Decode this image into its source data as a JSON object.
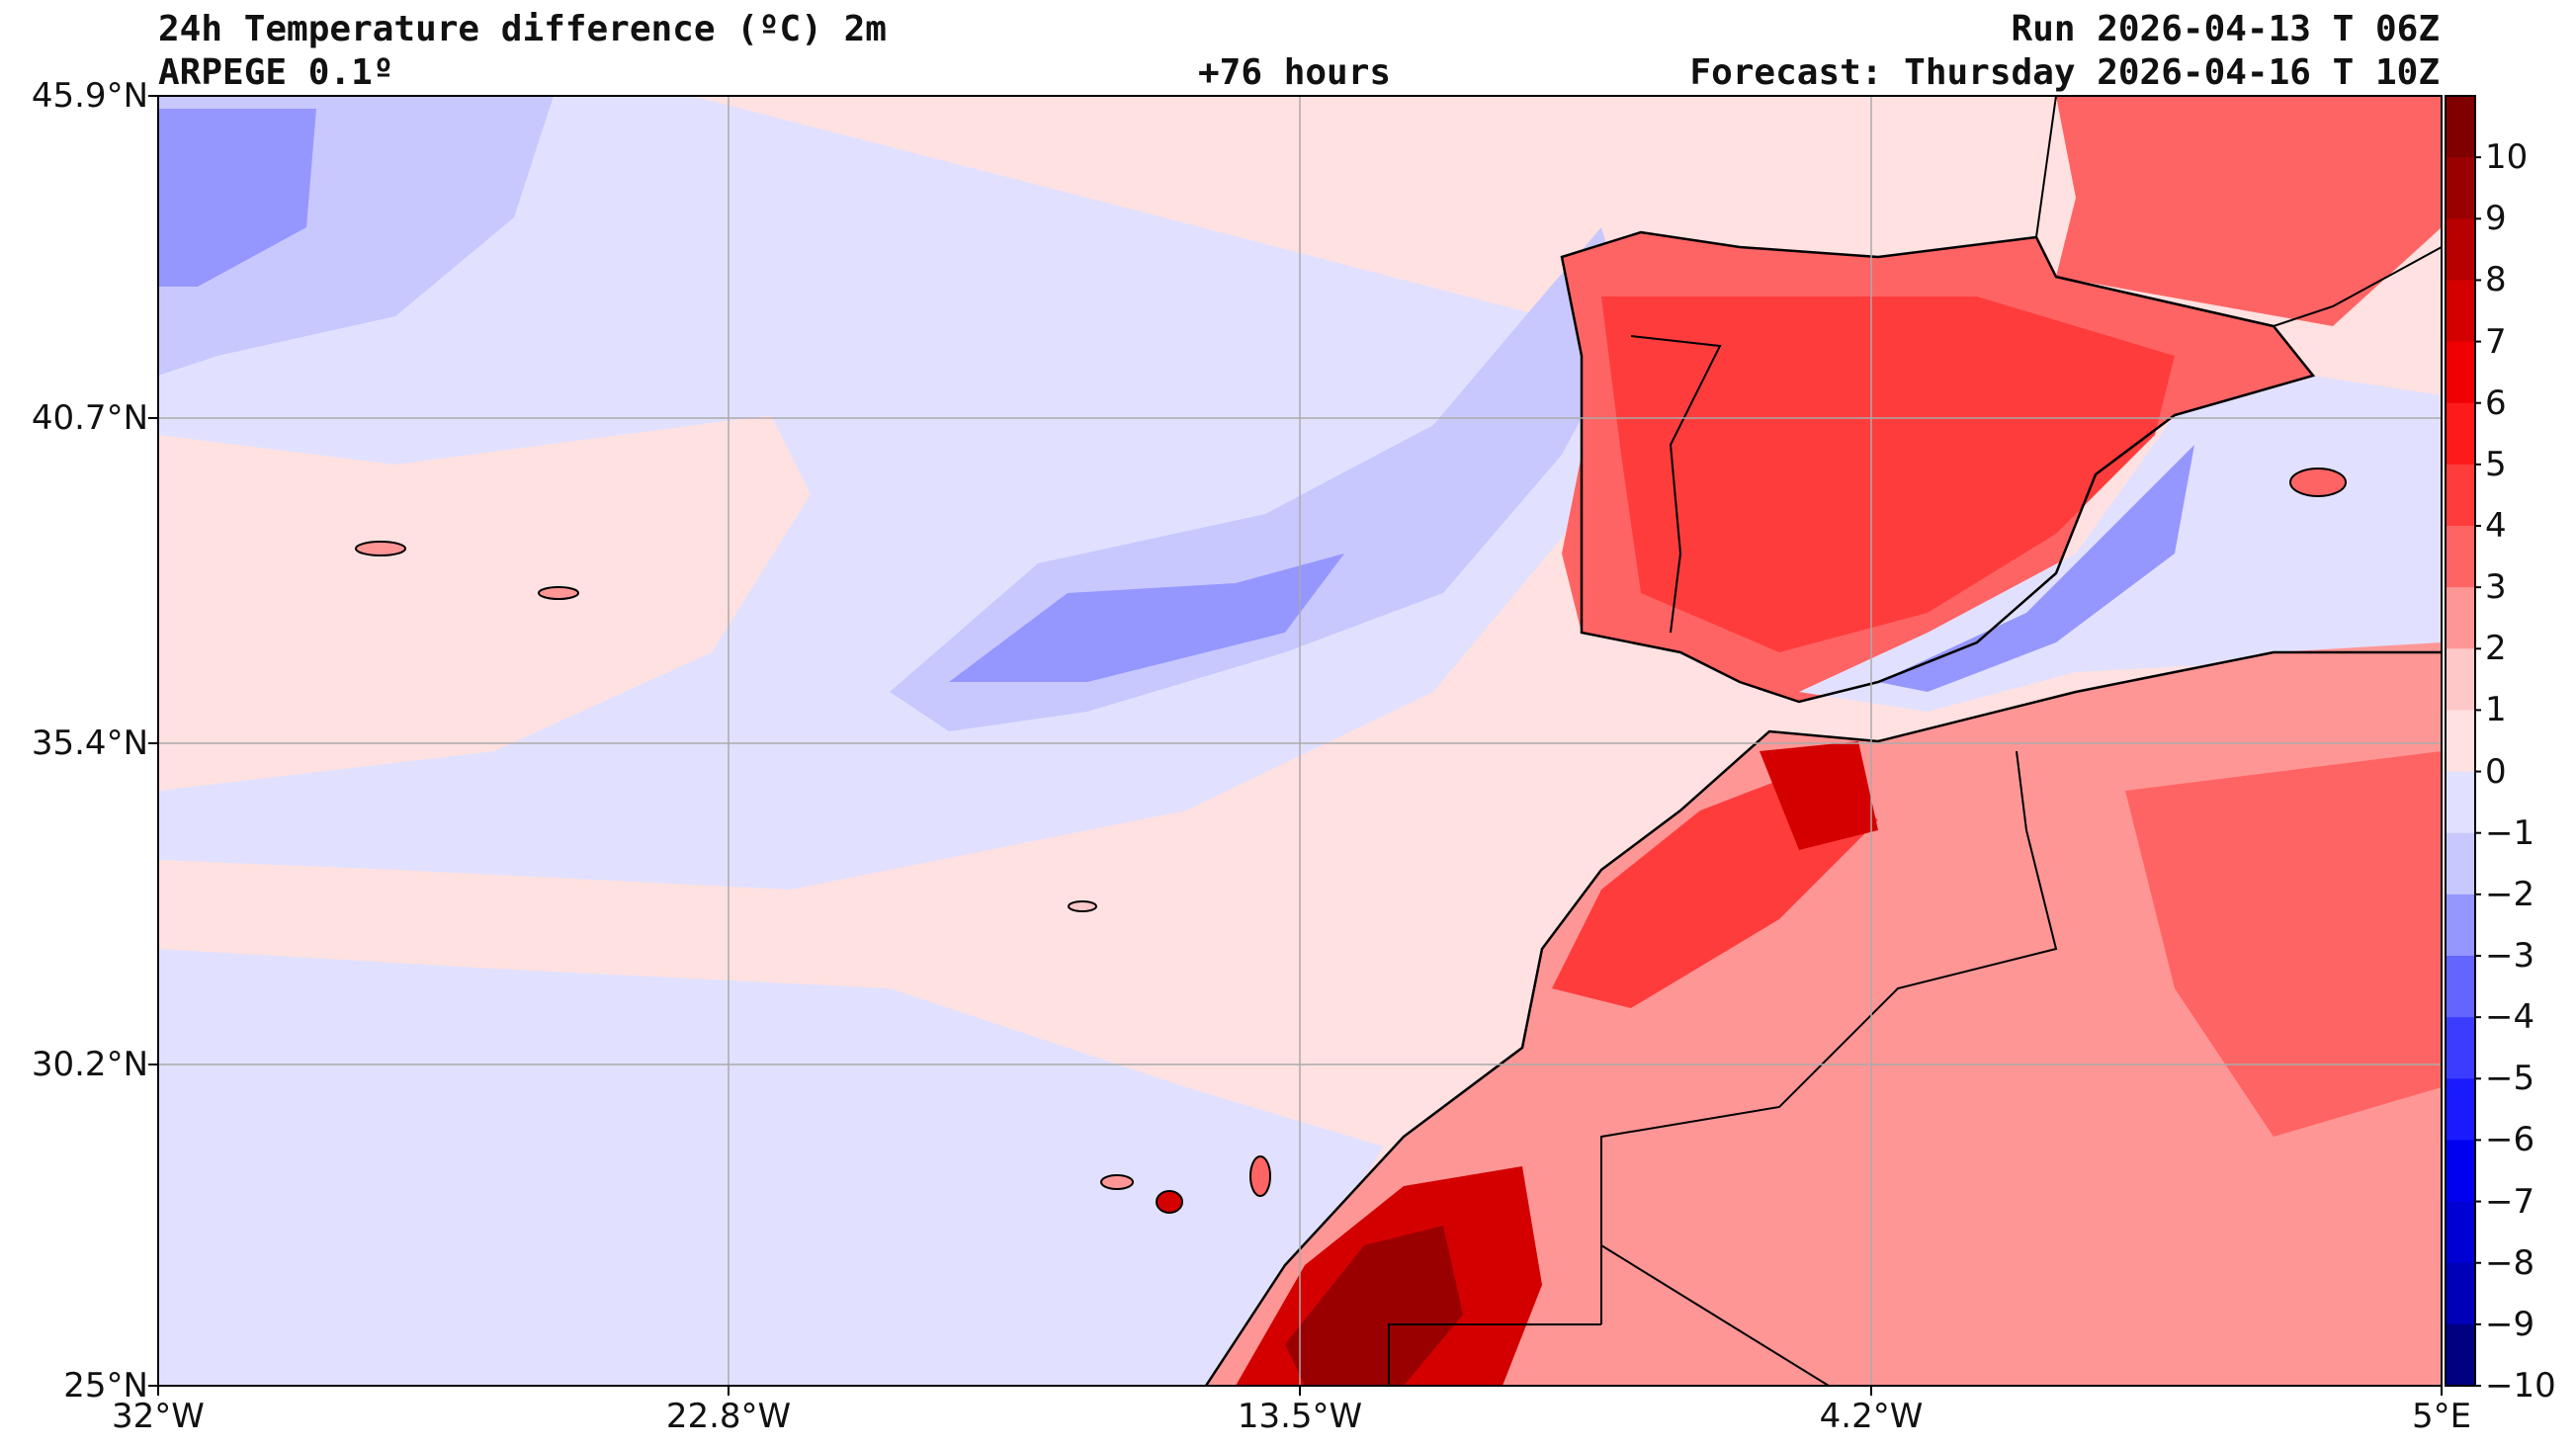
{
  "header": {
    "title": "24h Temperature difference (ºC) 2m",
    "model": "ARPEGE 0.1º",
    "lead_time": "+76 hours",
    "run": "Run 2026-04-13 T 06Z",
    "forecast": "Forecast: Thursday 2026-04-16 T 10Z"
  },
  "axes": {
    "lat_labels": [
      "45.9°N",
      "40.7°N",
      "35.4°N",
      "30.2°N",
      "25°N"
    ],
    "lon_labels": [
      "32°W",
      "22.8°W",
      "13.5°W",
      "4.2°W",
      "5°E"
    ]
  },
  "colorbar": {
    "labels": [
      "10",
      "9",
      "8",
      "7",
      "6",
      "5",
      "4",
      "3",
      "2",
      "1",
      "0",
      "−1",
      "−2",
      "−3",
      "−4",
      "−5",
      "−6",
      "−7",
      "−8",
      "−9",
      "−10"
    ],
    "levels": [
      {
        "color": "#800000"
      },
      {
        "color": "#9b0000"
      },
      {
        "color": "#b80000"
      },
      {
        "color": "#d40000"
      },
      {
        "color": "#f00000"
      },
      {
        "color": "#ff1a1a"
      },
      {
        "color": "#ff3c3c"
      },
      {
        "color": "#ff6464"
      },
      {
        "color": "#ff9696"
      },
      {
        "color": "#ffc8c8"
      },
      {
        "color": "#ffe1e1"
      },
      {
        "color": "#e1e1ff"
      },
      {
        "color": "#c8c8ff"
      },
      {
        "color": "#9696ff"
      },
      {
        "color": "#6464ff"
      },
      {
        "color": "#3c3cff"
      },
      {
        "color": "#1a1aff"
      },
      {
        "color": "#0000f0"
      },
      {
        "color": "#0000d4"
      },
      {
        "color": "#0000b8"
      },
      {
        "color": "#000080"
      }
    ]
  },
  "colors": {
    "sea_light_blue": "#e1e1ff",
    "pale_red": "#ffe1e1",
    "warm_red": "#ff6464",
    "hot_red": "#d40000",
    "cool_blue": "#9696ff"
  }
}
